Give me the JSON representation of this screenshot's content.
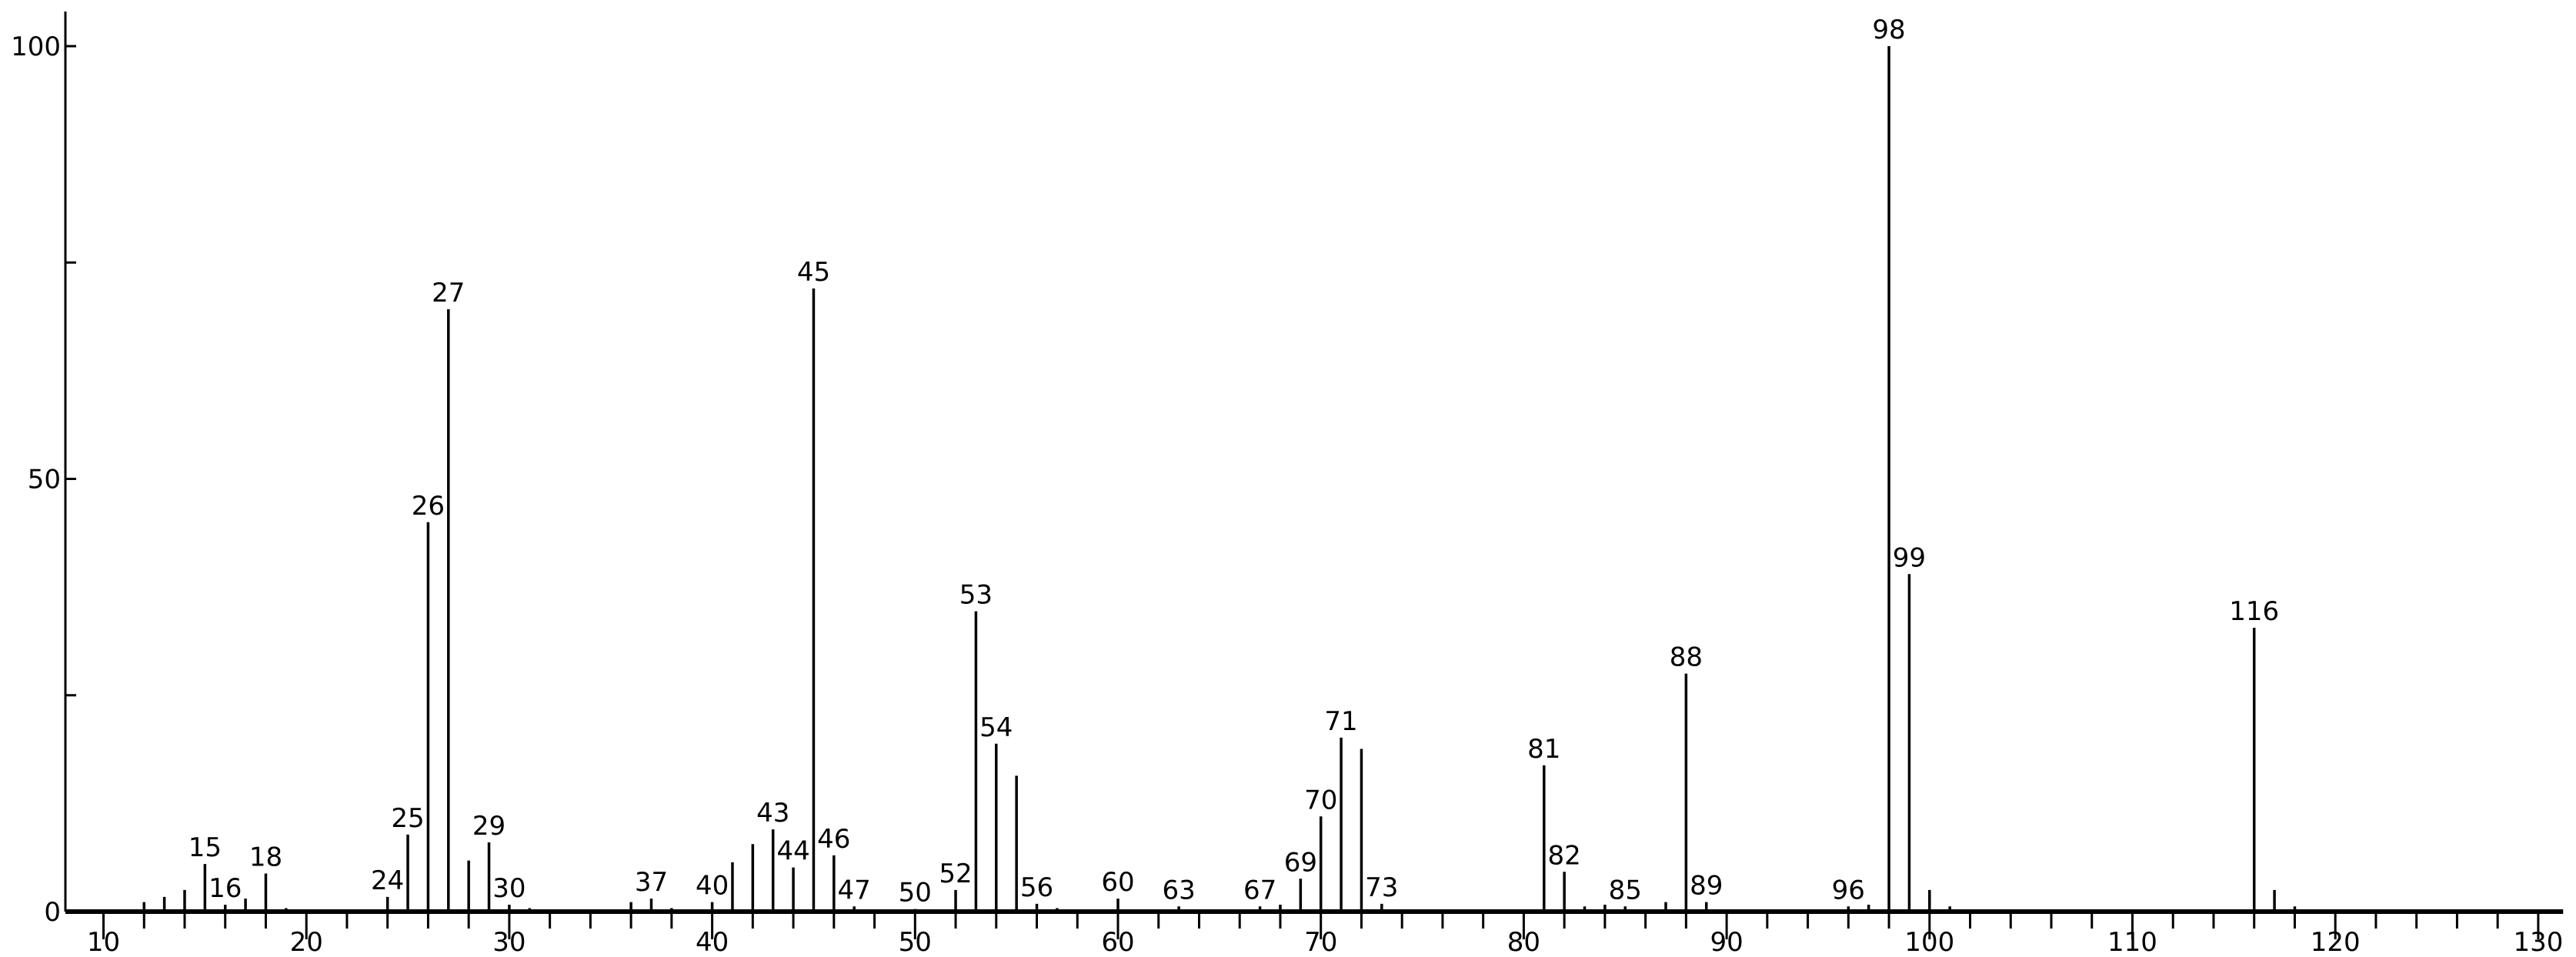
{
  "chart_data": {
    "type": "bar",
    "title": "",
    "xlabel": "",
    "ylabel": "",
    "xlim": [
      8,
      131
    ],
    "ylim": [
      0,
      100
    ],
    "x_ticks": [
      10,
      20,
      30,
      40,
      50,
      60,
      70,
      80,
      90,
      100,
      110,
      120,
      130
    ],
    "y_ticks": [
      0,
      50,
      100
    ],
    "grid": false,
    "color": "#000000",
    "peaks": [
      {
        "mz": 12,
        "i": 1.1
      },
      {
        "mz": 13,
        "i": 1.7
      },
      {
        "mz": 14,
        "i": 2.5
      },
      {
        "mz": 15,
        "i": 5.5,
        "label": "15"
      },
      {
        "mz": 16,
        "i": 0.8,
        "label": "16"
      },
      {
        "mz": 17,
        "i": 1.5
      },
      {
        "mz": 18,
        "i": 4.4,
        "label": "18"
      },
      {
        "mz": 19,
        "i": 0.4
      },
      {
        "mz": 24,
        "i": 1.7,
        "label": "24"
      },
      {
        "mz": 25,
        "i": 8.9,
        "label": "25"
      },
      {
        "mz": 26,
        "i": 45,
        "label": "26"
      },
      {
        "mz": 27,
        "i": 69.6,
        "label": "27"
      },
      {
        "mz": 28,
        "i": 5.9
      },
      {
        "mz": 29,
        "i": 8.0,
        "label": "29"
      },
      {
        "mz": 30,
        "i": 0.8,
        "label": "30"
      },
      {
        "mz": 31,
        "i": 0.4
      },
      {
        "mz": 36,
        "i": 1.1
      },
      {
        "mz": 37,
        "i": 1.5,
        "label": "37"
      },
      {
        "mz": 38,
        "i": 0.4
      },
      {
        "mz": 40,
        "i": 1.1,
        "label": "40"
      },
      {
        "mz": 41,
        "i": 5.7
      },
      {
        "mz": 42,
        "i": 7.8
      },
      {
        "mz": 43,
        "i": 9.5,
        "label": "43"
      },
      {
        "mz": 44,
        "i": 5.1,
        "label": "44"
      },
      {
        "mz": 45,
        "i": 72,
        "label": "45"
      },
      {
        "mz": 46,
        "i": 6.5,
        "label": "46"
      },
      {
        "mz": 47,
        "i": 0.6,
        "label": "47"
      },
      {
        "mz": 50,
        "i": 0.3,
        "label": "50"
      },
      {
        "mz": 52,
        "i": 2.5,
        "label": "52"
      },
      {
        "mz": 53,
        "i": 34.7,
        "label": "53"
      },
      {
        "mz": 54,
        "i": 19.4,
        "label": "54"
      },
      {
        "mz": 55,
        "i": 15.7
      },
      {
        "mz": 56,
        "i": 0.9,
        "label": "56"
      },
      {
        "mz": 57,
        "i": 0.4
      },
      {
        "mz": 60,
        "i": 1.5,
        "label": "60"
      },
      {
        "mz": 63,
        "i": 0.6,
        "label": "63"
      },
      {
        "mz": 67,
        "i": 0.6,
        "label": "67"
      },
      {
        "mz": 68,
        "i": 0.8
      },
      {
        "mz": 69,
        "i": 3.8,
        "label": "69"
      },
      {
        "mz": 70,
        "i": 11,
        "label": "70"
      },
      {
        "mz": 71,
        "i": 20.1,
        "label": "71"
      },
      {
        "mz": 72,
        "i": 18.8
      },
      {
        "mz": 73,
        "i": 0.9,
        "label": "73"
      },
      {
        "mz": 81,
        "i": 16.9,
        "label": "81"
      },
      {
        "mz": 82,
        "i": 4.6,
        "label": "82"
      },
      {
        "mz": 83,
        "i": 0.6
      },
      {
        "mz": 84,
        "i": 0.8
      },
      {
        "mz": 85,
        "i": 0.6,
        "label": "85"
      },
      {
        "mz": 87,
        "i": 1.1
      },
      {
        "mz": 88,
        "i": 27.5,
        "label": "88"
      },
      {
        "mz": 89,
        "i": 1.1,
        "label": "89"
      },
      {
        "mz": 96,
        "i": 0.6,
        "label": "96"
      },
      {
        "mz": 97,
        "i": 0.8
      },
      {
        "mz": 98,
        "i": 100,
        "label": "98"
      },
      {
        "mz": 99,
        "i": 39,
        "label": "99"
      },
      {
        "mz": 100,
        "i": 2.5
      },
      {
        "mz": 101,
        "i": 0.6
      },
      {
        "mz": 116,
        "i": 32.8,
        "label": "116"
      },
      {
        "mz": 117,
        "i": 2.5
      },
      {
        "mz": 118,
        "i": 0.6
      }
    ]
  }
}
